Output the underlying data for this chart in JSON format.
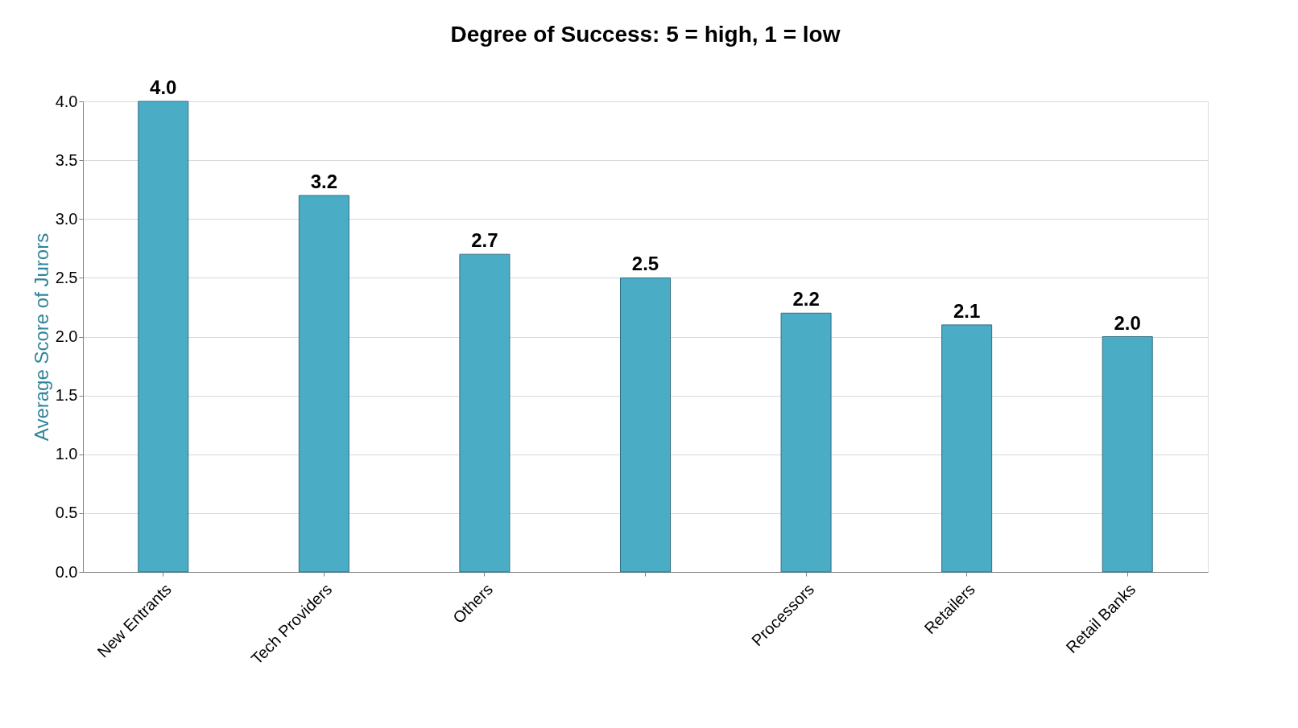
{
  "chart_data": {
    "type": "bar",
    "title": "Degree of Success: 5 = high, 1 = low",
    "ylabel": "Average Score of Jurors",
    "categories": [
      "New Entrants",
      "Tech Providers",
      "Others",
      null,
      "Processors",
      "Retailers",
      "Retail Banks"
    ],
    "values": [
      4.0,
      3.2,
      2.7,
      2.5,
      2.2,
      2.1,
      2.0
    ],
    "value_labels": [
      "4.0",
      "3.2",
      "2.7",
      "2.5",
      "2.2",
      "2.1",
      "2.0"
    ],
    "color": "#4bacc6",
    "ylim": [
      0,
      4
    ],
    "yticks": [
      {
        "value": 0,
        "label": "0.0"
      },
      {
        "value": 0.5,
        "label": "0.5"
      },
      {
        "value": 1,
        "label": "1.0"
      },
      {
        "value": 1.5,
        "label": "1.5"
      },
      {
        "value": 2,
        "label": "2.0"
      },
      {
        "value": 2.5,
        "label": "2.5"
      },
      {
        "value": 3,
        "label": "3.0"
      },
      {
        "value": 3.5,
        "label": "3.5"
      },
      {
        "value": 4,
        "label": "4.0"
      }
    ],
    "grid": "y"
  }
}
